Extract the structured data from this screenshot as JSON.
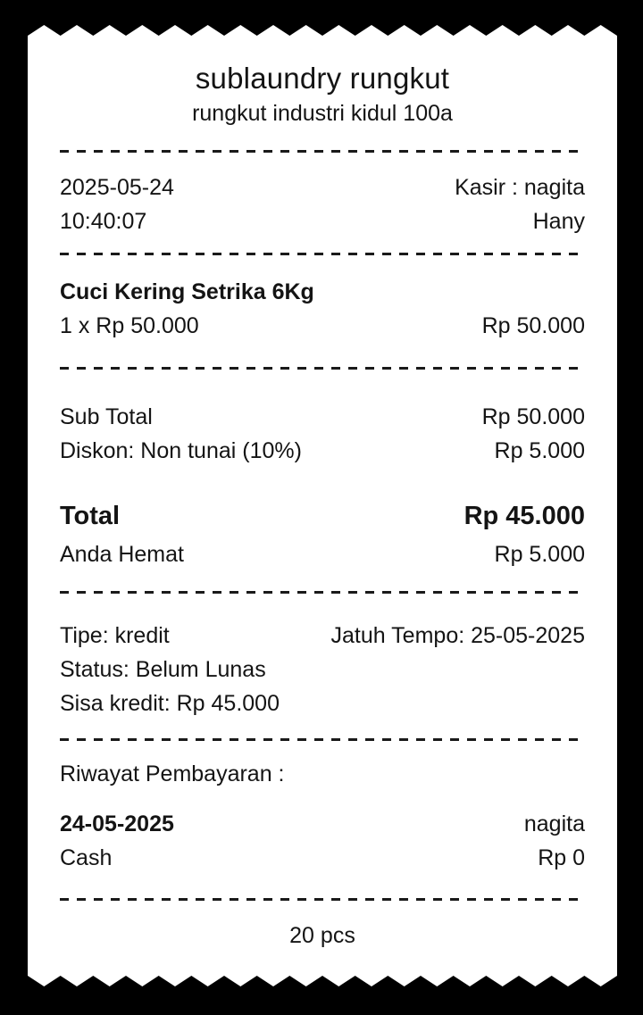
{
  "colors": {
    "background": "#000000",
    "paper": "#ffffff",
    "text": "#141414"
  },
  "receipt": {
    "store_name": "sublaundry rungkut",
    "store_address": "rungkut industri kidul 100a",
    "header": {
      "date": "2025-05-24",
      "time": "10:40:07",
      "cashier": "Kasir : nagita",
      "cashier_assistant": "Hany"
    },
    "items": [
      {
        "name": "Cuci Kering Setrika 6Kg",
        "qty_price": "1 x Rp 50.000",
        "amount": "Rp 50.000"
      }
    ],
    "summary": {
      "subtotal_label": "Sub Total",
      "subtotal_value": "Rp 50.000",
      "discount_label": "Diskon: Non tunai (10%)",
      "discount_value": "Rp 5.000",
      "total_label": "Total",
      "total_value": "Rp 45.000",
      "savings_label": "Anda Hemat",
      "savings_value": "Rp 5.000"
    },
    "credit": {
      "type": "Tipe: kredit",
      "due_date": "Jatuh Tempo: 25-05-2025",
      "status": "Status: Belum Lunas",
      "remaining": "Sisa kredit: Rp 45.000"
    },
    "payment_history": {
      "title": "Riwayat Pembayaran :",
      "entries": [
        {
          "date": "24-05-2025",
          "cashier": "nagita",
          "method": "Cash",
          "amount": "Rp 0"
        }
      ]
    },
    "footer": {
      "total_pcs": "20 pcs"
    }
  }
}
